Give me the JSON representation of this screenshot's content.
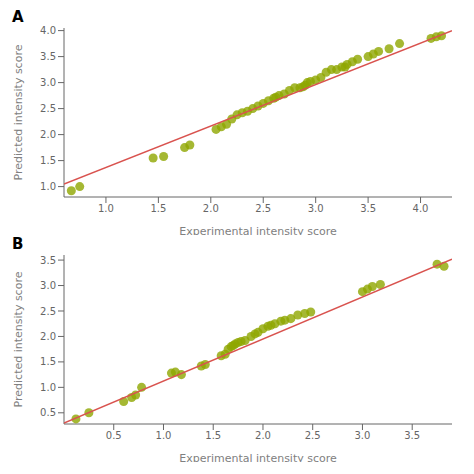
{
  "chart_data": [
    {
      "type": "scatter",
      "title": "A",
      "x_label": "Experimental intensity score",
      "y_label": "Predicted intensity score",
      "xlim": [
        0.6,
        4.3
      ],
      "ylim": [
        0.8,
        4.05
      ],
      "xticks": [
        {
          "value": 1.0,
          "label": "1.0"
        },
        1.5,
        {
          "value": 2.0,
          "label": "2.0"
        },
        2.5,
        {
          "value": 3.0,
          "label": "3.0"
        },
        3.5,
        {
          "value": 4.0,
          "label": "4.0"
        }
      ],
      "yticks": [
        {
          "value": 1.0,
          "label": "1.0"
        },
        1.5,
        {
          "value": 2.0,
          "label": "2.0"
        },
        2.5,
        {
          "value": 3.0,
          "label": "3.0"
        },
        3.5,
        {
          "value": 4.0,
          "label": "4.0"
        }
      ],
      "series": [
        {
          "type": "scatter",
          "color": "#8fa600",
          "x": [
            0.67,
            0.75,
            1.45,
            1.55,
            1.75,
            1.8,
            2.05,
            2.1,
            2.15,
            2.2,
            2.25,
            2.3,
            2.35,
            2.4,
            2.45,
            2.5,
            2.55,
            2.6,
            2.62,
            2.65,
            2.7,
            2.75,
            2.8,
            2.85,
            2.88,
            2.9,
            2.92,
            2.95,
            3.0,
            3.05,
            3.1,
            3.15,
            3.2,
            3.25,
            3.28,
            3.3,
            3.35,
            3.4,
            3.5,
            3.55,
            3.6,
            3.7,
            3.8,
            4.1,
            4.15,
            4.2
          ],
          "values": [
            0.92,
            1.0,
            1.55,
            1.58,
            1.75,
            1.8,
            2.1,
            2.15,
            2.2,
            2.3,
            2.38,
            2.42,
            2.45,
            2.5,
            2.55,
            2.6,
            2.65,
            2.7,
            2.72,
            2.75,
            2.78,
            2.85,
            2.9,
            2.9,
            2.92,
            2.95,
            3.0,
            3.02,
            3.05,
            3.1,
            3.2,
            3.25,
            3.25,
            3.3,
            3.3,
            3.35,
            3.4,
            3.45,
            3.5,
            3.55,
            3.6,
            3.65,
            3.75,
            3.85,
            3.88,
            3.9
          ]
        },
        {
          "type": "line",
          "color": "#d9534f",
          "x": [
            0.6,
            4.3
          ],
          "values": [
            1.05,
            4.0
          ]
        }
      ]
    },
    {
      "type": "scatter",
      "title": "B",
      "x_label": "Experimental intensity score",
      "y_label": "Predicted intensity score",
      "xlim": [
        0.0,
        3.9
      ],
      "ylim": [
        0.28,
        3.6
      ],
      "xticks": [
        0.5,
        {
          "value": 1.0,
          "label": "1.0"
        },
        1.5,
        {
          "value": 2.0,
          "label": "2.0"
        },
        2.5,
        {
          "value": 3.0,
          "label": "3.0"
        },
        3.5
      ],
      "yticks": [
        0.5,
        {
          "value": 1.0,
          "label": "1.0"
        },
        1.5,
        {
          "value": 2.0,
          "label": "2.0"
        },
        2.5,
        {
          "value": 3.0,
          "label": "3.0"
        },
        3.5
      ],
      "series": [
        {
          "type": "scatter",
          "color": "#8fa600",
          "x": [
            0.12,
            0.25,
            0.6,
            0.68,
            0.72,
            0.78,
            1.08,
            1.12,
            1.18,
            1.38,
            1.42,
            1.58,
            1.62,
            1.65,
            1.68,
            1.7,
            1.72,
            1.75,
            1.78,
            1.82,
            1.88,
            1.92,
            1.95,
            2.0,
            2.05,
            2.08,
            2.12,
            2.18,
            2.22,
            2.28,
            2.35,
            2.42,
            2.48,
            3.0,
            3.05,
            3.1,
            3.18,
            3.75,
            3.82
          ],
          "values": [
            0.38,
            0.5,
            0.72,
            0.8,
            0.85,
            1.0,
            1.28,
            1.3,
            1.25,
            1.42,
            1.45,
            1.62,
            1.65,
            1.75,
            1.8,
            1.82,
            1.85,
            1.88,
            1.9,
            1.92,
            2.0,
            2.05,
            2.08,
            2.15,
            2.2,
            2.22,
            2.25,
            2.3,
            2.32,
            2.35,
            2.42,
            2.45,
            2.48,
            2.88,
            2.93,
            2.98,
            3.02,
            3.42,
            3.38
          ]
        },
        {
          "type": "line",
          "color": "#d9534f",
          "x": [
            0.0,
            3.9
          ],
          "values": [
            0.3,
            3.52
          ]
        }
      ]
    }
  ]
}
